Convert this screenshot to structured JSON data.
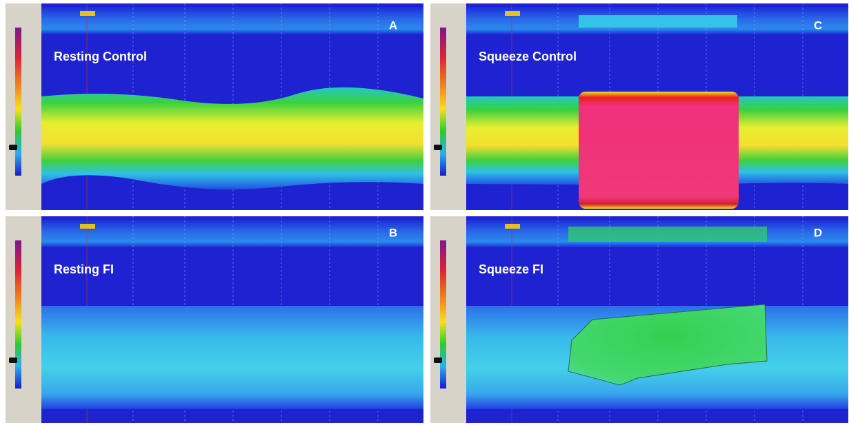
{
  "panels": [
    {
      "label": "A",
      "title": "Resting  Control"
    },
    {
      "label": "C",
      "title": "Squeeze  Control"
    },
    {
      "label": "B",
      "title": "Resting FI"
    },
    {
      "label": "D",
      "title": "Squeeze FI"
    }
  ]
}
